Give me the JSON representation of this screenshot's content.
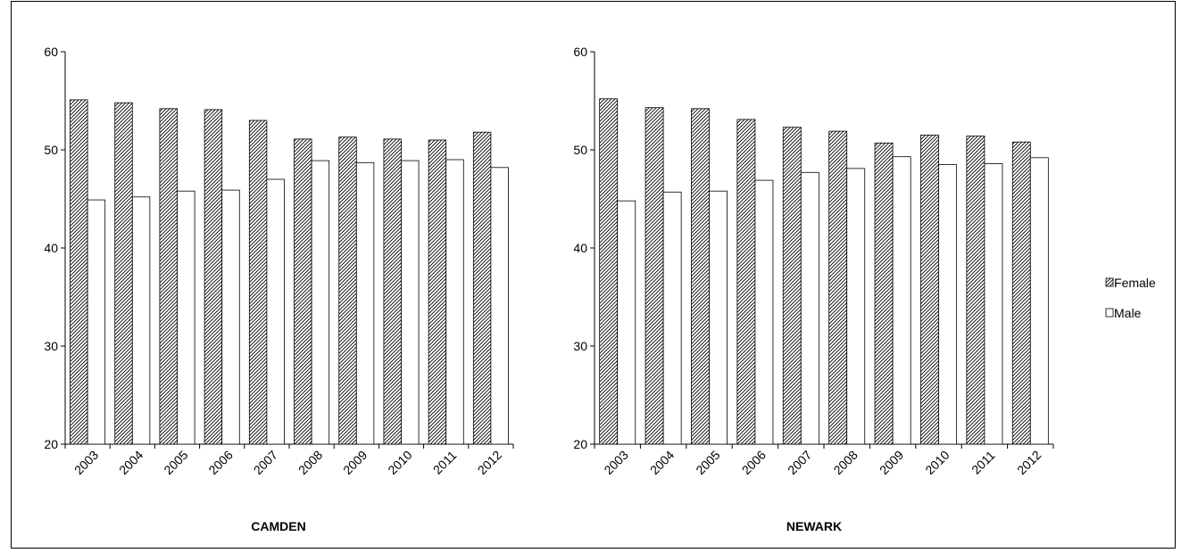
{
  "colors": {
    "female_fill": "hatched-black-on-white",
    "male_fill": "#ffffff",
    "axis": "#000000"
  },
  "legend": {
    "position": "right",
    "items": [
      {
        "label": "Female",
        "pattern": "hatch"
      },
      {
        "label": "Male",
        "pattern": "white"
      }
    ]
  },
  "chart_data": [
    {
      "type": "bar",
      "title": "CAMDEN",
      "xlabel": "",
      "ylabel": "",
      "ylim": [
        20,
        60
      ],
      "yticks": [
        20,
        30,
        40,
        50,
        60
      ],
      "grid": false,
      "categories": [
        "2003",
        "2004",
        "2005",
        "2006",
        "2007",
        "2008",
        "2009",
        "2010",
        "2011",
        "2012"
      ],
      "series": [
        {
          "name": "Female",
          "values": [
            55.1,
            54.8,
            54.2,
            54.1,
            53.0,
            51.1,
            51.3,
            51.1,
            51.0,
            51.8
          ]
        },
        {
          "name": "Male",
          "values": [
            44.9,
            45.2,
            45.8,
            45.9,
            47.0,
            48.9,
            48.7,
            48.9,
            49.0,
            48.2
          ]
        }
      ]
    },
    {
      "type": "bar",
      "title": "NEWARK",
      "xlabel": "",
      "ylabel": "",
      "ylim": [
        20,
        60
      ],
      "yticks": [
        20,
        30,
        40,
        50,
        60
      ],
      "grid": false,
      "categories": [
        "2003",
        "2004",
        "2005",
        "2006",
        "2007",
        "2008",
        "2009",
        "2010",
        "2011",
        "2012"
      ],
      "series": [
        {
          "name": "Female",
          "values": [
            55.2,
            54.3,
            54.2,
            53.1,
            52.3,
            51.9,
            50.7,
            51.5,
            51.4,
            50.8
          ]
        },
        {
          "name": "Male",
          "values": [
            44.8,
            45.7,
            45.8,
            46.9,
            47.7,
            48.1,
            49.3,
            48.5,
            48.6,
            49.2
          ]
        }
      ]
    }
  ]
}
